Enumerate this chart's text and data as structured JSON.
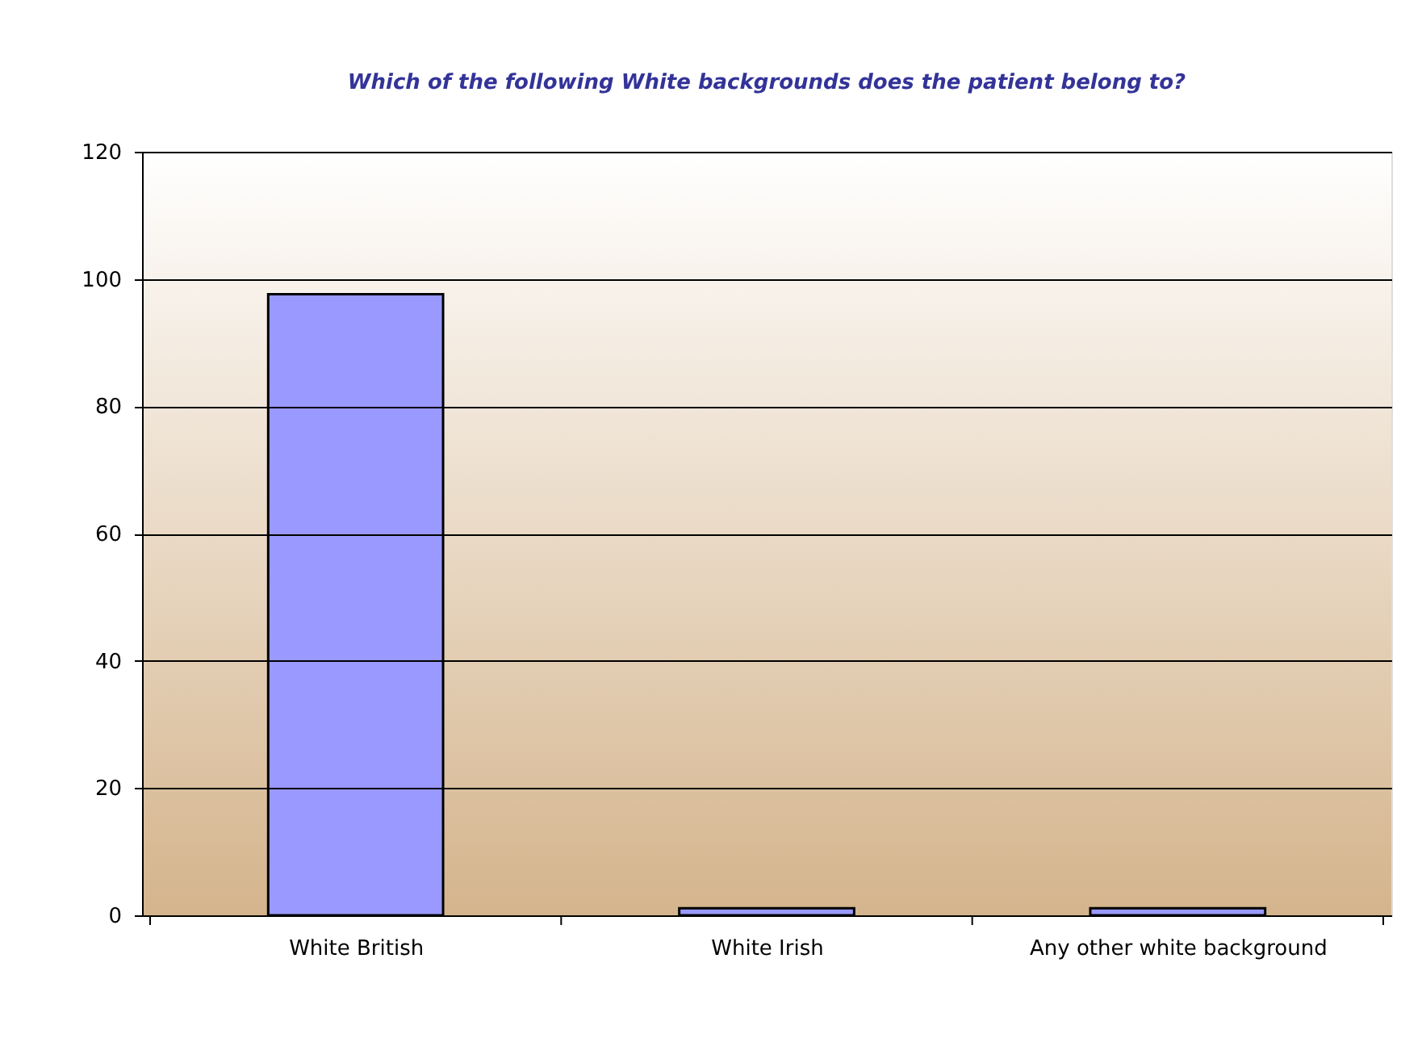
{
  "chart_data": {
    "type": "bar",
    "title": "Which of the following White backgrounds does the patient belong to?",
    "categories": [
      "White British",
      "White Irish",
      "Any other white background"
    ],
    "values": [
      97.6,
      1.1,
      1.1
    ],
    "color": "#9999ff",
    "ylim": [
      0,
      120
    ],
    "yticks": [
      0,
      20,
      40,
      60,
      80,
      100,
      120
    ],
    "grid": "y"
  }
}
